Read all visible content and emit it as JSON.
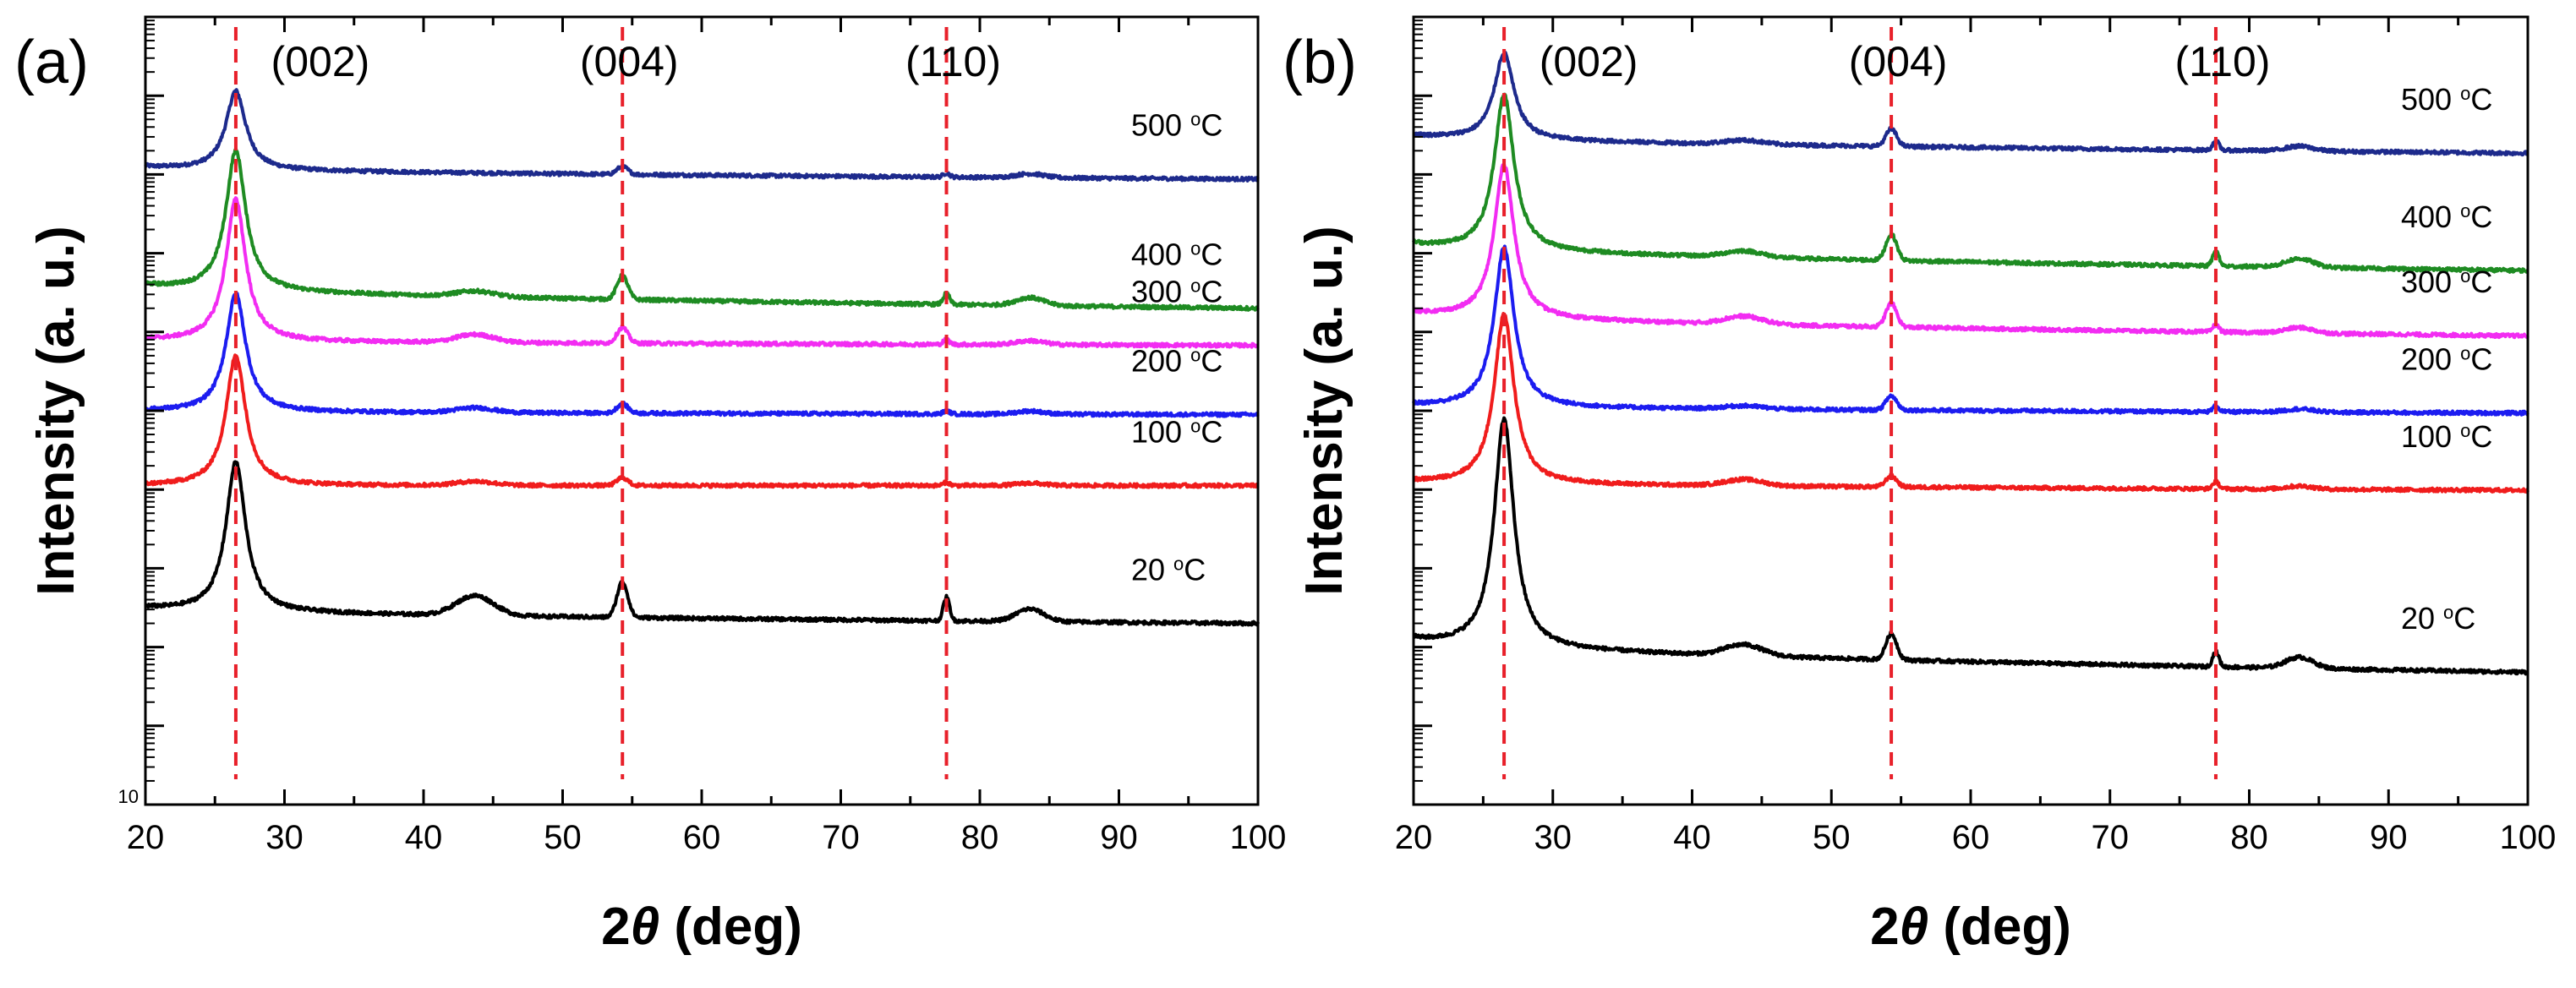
{
  "chart_data": [
    {
      "panel_label": "(a)",
      "type": "line",
      "xlabel_pre": "2",
      "xlabel_theta": "θ",
      "xlabel_post": " (deg)",
      "ylabel": "Intensity (a. u.)",
      "y_scale": "log",
      "y_tick_label": "10",
      "xlim": [
        20,
        100
      ],
      "x_ticks": [
        "20",
        "30",
        "40",
        "50",
        "60",
        "70",
        "80",
        "90",
        "100"
      ],
      "peaks": [
        {
          "label": "(002)",
          "x": 26.5
        },
        {
          "label": "(004)",
          "x": 54.3
        },
        {
          "label": "(110)",
          "x": 77.6
        }
      ],
      "peak_line_color": "#e8202a",
      "series": [
        {
          "name": "500 °C",
          "num": "500",
          "unit": "C",
          "color": "#1d2a8c",
          "baseline_start": 8.1,
          "baseline_end": 7.94,
          "peaks": [
            9.1,
            0.0,
            0.1,
            0.05,
            0.05
          ]
        },
        {
          "name": "400 °C",
          "num": "400",
          "unit": "C",
          "color": "#1e8b22",
          "baseline_start": 6.6,
          "baseline_end": 6.3,
          "peaks": [
            8.38,
            0.07,
            0.3,
            0.14,
            0.1
          ]
        },
        {
          "name": "300 °C",
          "num": "300",
          "unit": "C",
          "color": "#f22cf2",
          "baseline_start": 5.9,
          "baseline_end": 5.83,
          "peaks": [
            7.7,
            0.1,
            0.2,
            0.06,
            0.05
          ]
        },
        {
          "name": "200 °C",
          "num": "200",
          "unit": "C",
          "color": "#1c1cf0",
          "baseline_start": 5.0,
          "baseline_end": 4.95,
          "peaks": [
            6.5,
            0.06,
            0.12,
            0.04,
            0.04
          ]
        },
        {
          "name": "100 °C",
          "num": "100",
          "unit": "C",
          "color": "#f01c1c",
          "baseline_start": 4.05,
          "baseline_end": 4.05,
          "peaks": [
            5.7,
            0.05,
            0.1,
            0.04,
            0.03
          ]
        },
        {
          "name": "20 °C",
          "num": "20",
          "unit": "C",
          "color": "#000000",
          "baseline_start": 2.5,
          "baseline_end": 2.3,
          "peaks": [
            4.4,
            0.25,
            0.45,
            0.3,
            0.16
          ]
        }
      ]
    },
    {
      "panel_label": "(b)",
      "type": "line",
      "xlabel_pre": "2",
      "xlabel_theta": "θ",
      "xlabel_post": " (deg)",
      "ylabel": "Intensity (a. u.)",
      "y_scale": "log",
      "xlim": [
        20,
        100
      ],
      "x_ticks": [
        "20",
        "30",
        "40",
        "50",
        "60",
        "70",
        "80",
        "90",
        "100"
      ],
      "peaks": [
        {
          "label": "(002)",
          "x": 26.5
        },
        {
          "label": "(004)",
          "x": 54.3
        },
        {
          "label": "(110)",
          "x": 77.6
        }
      ],
      "peak_line_color": "#e8202a",
      "series": [
        {
          "name": "500 °C",
          "num": "500",
          "unit": "C",
          "color": "#1d2a8c",
          "baseline_start": 8.5,
          "baseline_end": 8.27,
          "peaks": [
            9.6,
            0.05,
            0.22,
            0.12,
            0.06
          ]
        },
        {
          "name": "400 °C",
          "num": "400",
          "unit": "C",
          "color": "#1e8b22",
          "baseline_start": 7.12,
          "baseline_end": 6.78,
          "peaks": [
            9.1,
            0.08,
            0.33,
            0.19,
            0.11
          ]
        },
        {
          "name": "300 °C",
          "num": "300",
          "unit": "C",
          "color": "#f22cf2",
          "baseline_start": 6.25,
          "baseline_end": 5.95,
          "peaks": [
            8.2,
            0.1,
            0.3,
            0.09,
            0.07
          ]
        },
        {
          "name": "200 °C",
          "num": "200",
          "unit": "C",
          "color": "#1c1cf0",
          "baseline_start": 5.07,
          "baseline_end": 4.97,
          "peaks": [
            7.1,
            0.04,
            0.18,
            0.07,
            0.04
          ]
        },
        {
          "name": "100 °C",
          "num": "100",
          "unit": "C",
          "color": "#f01c1c",
          "baseline_start": 4.1,
          "baseline_end": 3.99,
          "peaks": [
            6.25,
            0.08,
            0.14,
            0.09,
            0.04
          ]
        },
        {
          "name": "20 °C",
          "num": "20",
          "unit": "C",
          "color": "#000000",
          "baseline_start": 2.1,
          "baseline_end": 1.68,
          "peaks": [
            5.0,
            0.14,
            0.33,
            0.19,
            0.14
          ]
        }
      ]
    }
  ]
}
